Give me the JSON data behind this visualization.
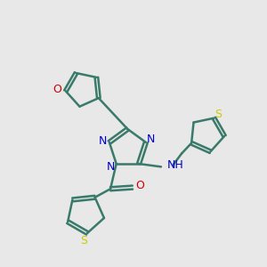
{
  "bg_color": "#e8e8e8",
  "atom_colors": {
    "N": "#0000cc",
    "O": "#cc0000",
    "S": "#cccc00",
    "C_bond": "#3a7a6a"
  },
  "figsize": [
    3.0,
    3.0
  ],
  "dpi": 100
}
